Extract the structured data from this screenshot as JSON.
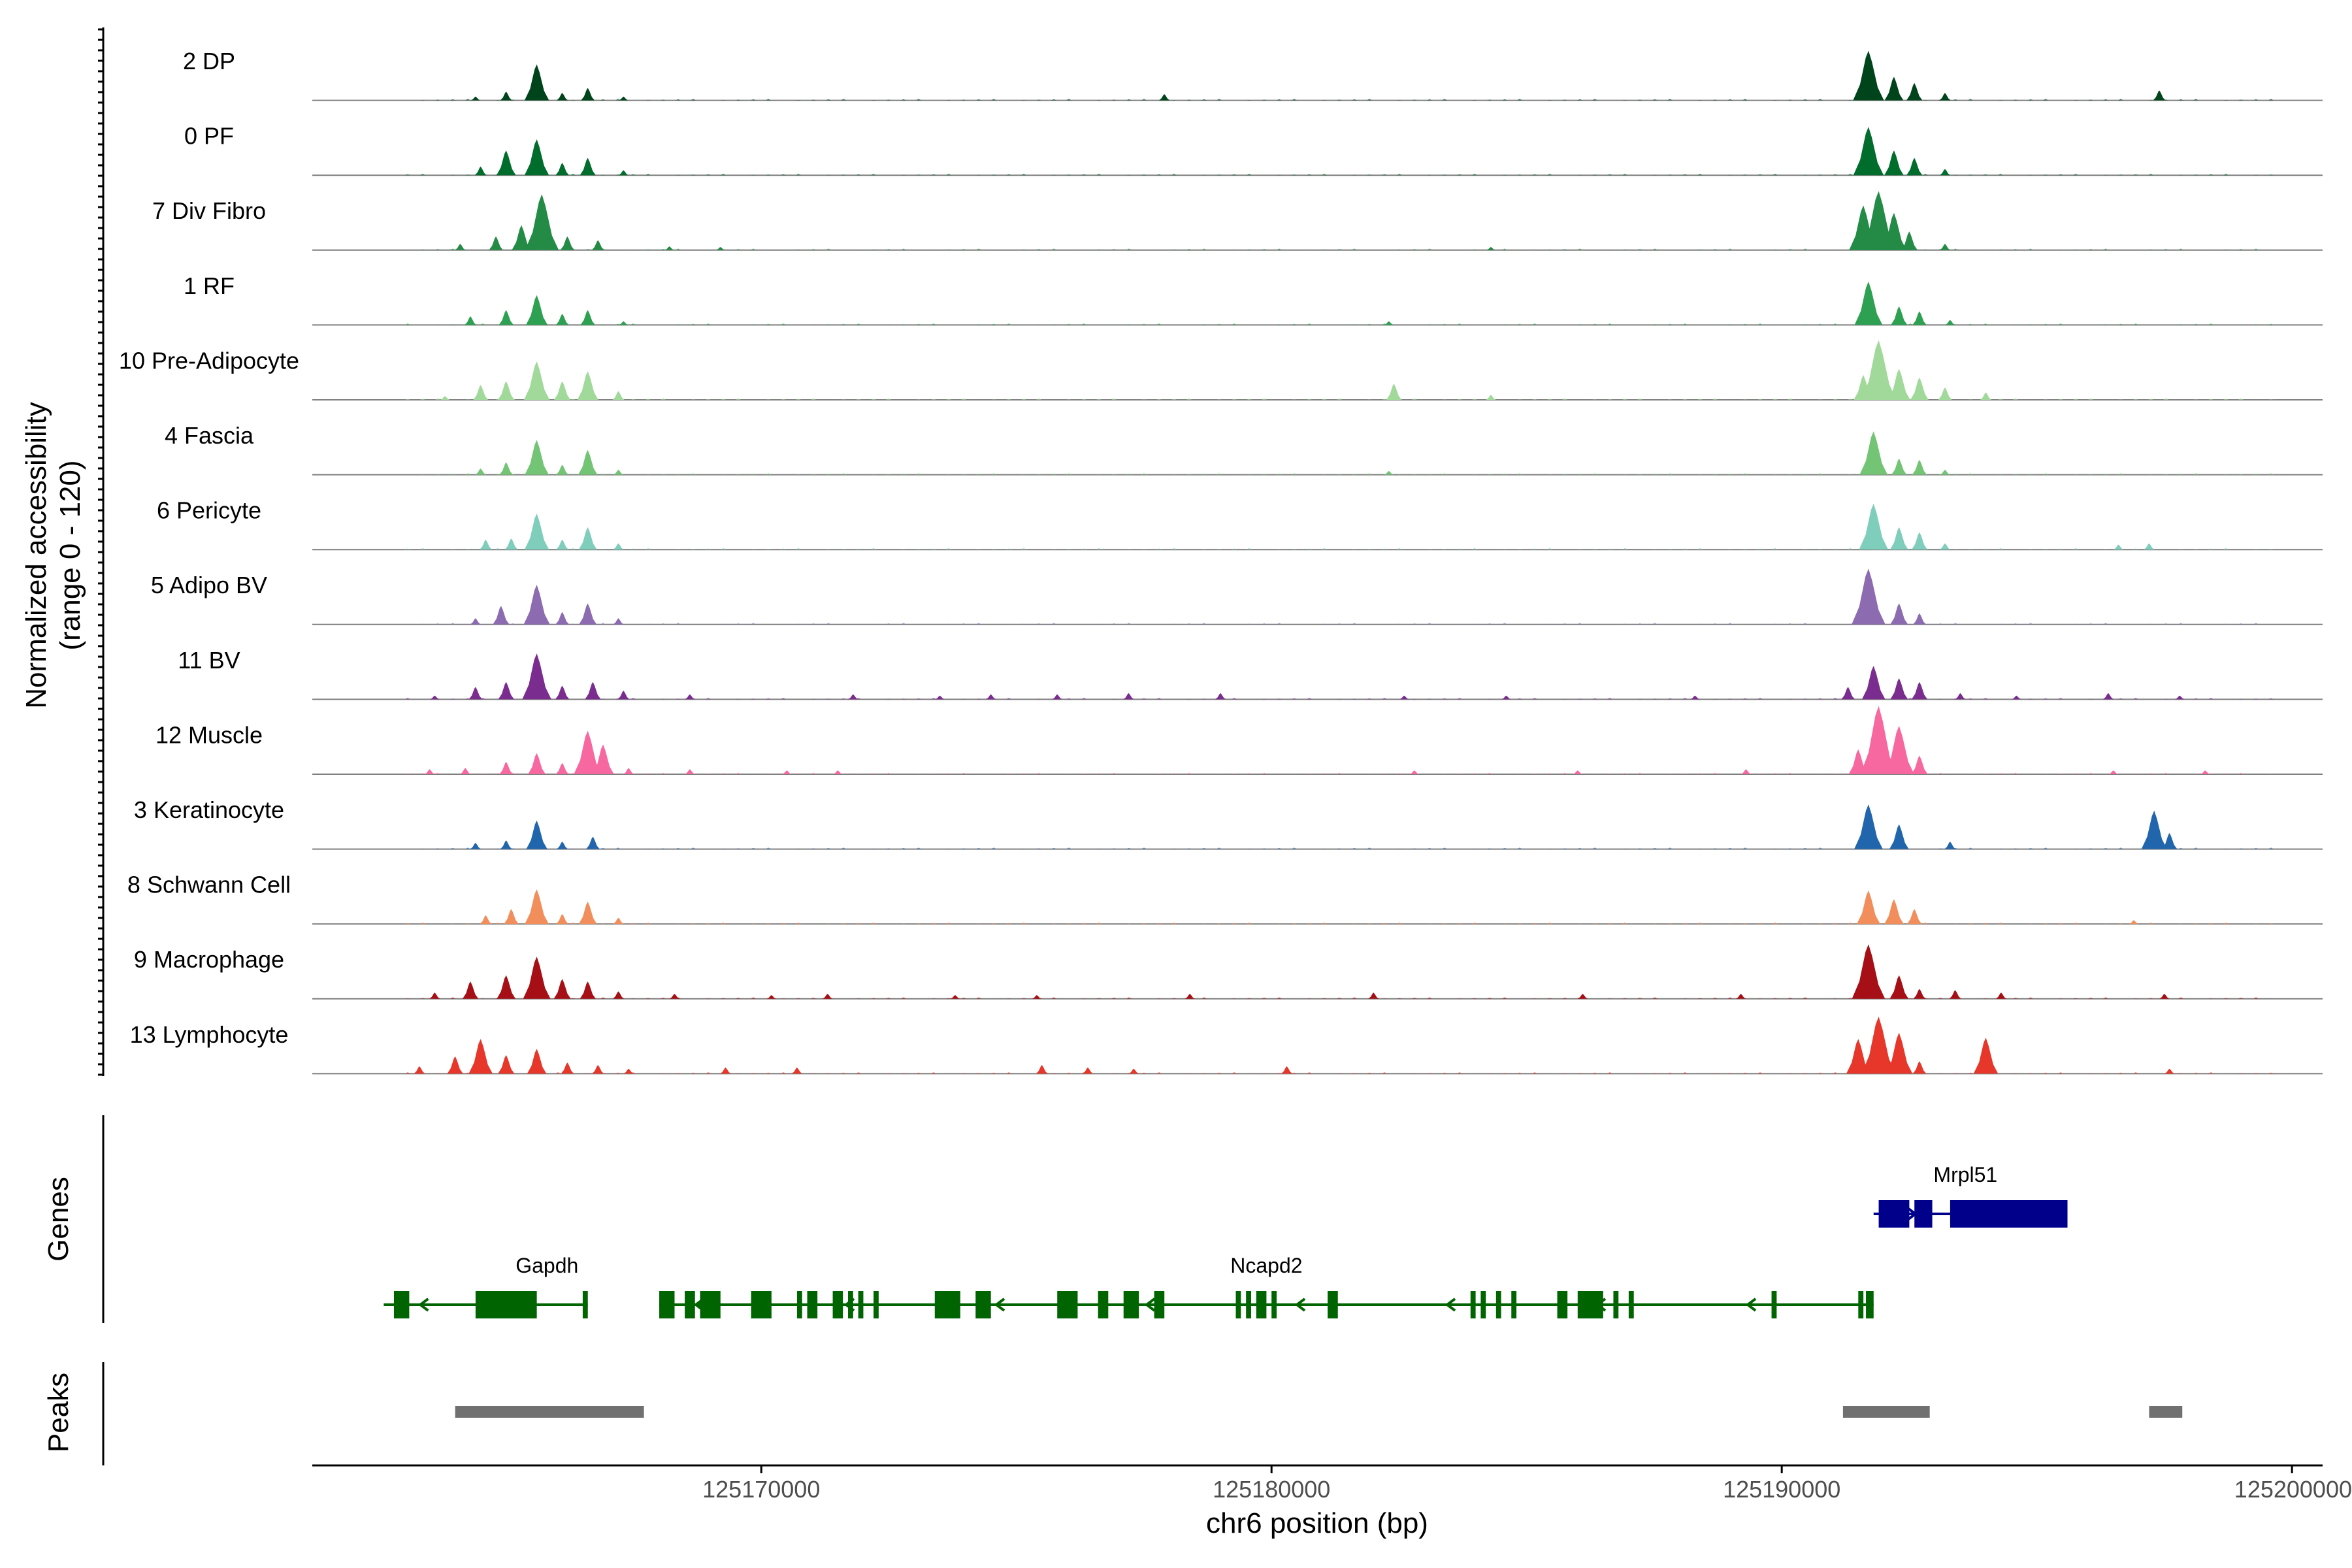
{
  "chart_data": {
    "type": "area",
    "subtype": "genome-coverage-track",
    "chromosome": "chr6",
    "xlabel": "chr6 position (bp)",
    "ylabel": "Normalized accessibility\n(range 0 - 120)",
    "y_range": [
      0,
      120
    ],
    "xlim": [
      125161200,
      125200600
    ],
    "x_ticks": [
      125170000,
      125180000,
      125190000,
      125200000
    ],
    "x_tick_labels": [
      "125170000",
      "125180000",
      "125190000",
      "125200000"
    ],
    "grid": false,
    "legend": "none",
    "tracks": [
      {
        "label": "2 DP",
        "color": "#00441b",
        "peaks": [
          [
            125164400,
            6
          ],
          [
            125165000,
            14
          ],
          [
            125165600,
            58
          ],
          [
            125166100,
            12
          ],
          [
            125166600,
            20
          ],
          [
            125167300,
            6
          ],
          [
            125177900,
            10
          ],
          [
            125191700,
            80
          ],
          [
            125192200,
            38
          ],
          [
            125192600,
            28
          ],
          [
            125193200,
            12
          ],
          [
            125197400,
            16
          ]
        ]
      },
      {
        "label": "0 PF",
        "color": "#006d2c",
        "peaks": [
          [
            125164500,
            14
          ],
          [
            125165000,
            40
          ],
          [
            125165600,
            58
          ],
          [
            125166100,
            20
          ],
          [
            125166600,
            28
          ],
          [
            125167300,
            8
          ],
          [
            125191700,
            78
          ],
          [
            125192200,
            40
          ],
          [
            125192600,
            28
          ],
          [
            125193200,
            10
          ]
        ]
      },
      {
        "label": "7 Div Fibro",
        "color": "#238b45",
        "peaks": [
          [
            125164100,
            10
          ],
          [
            125164800,
            22
          ],
          [
            125165300,
            40
          ],
          [
            125165700,
            90
          ],
          [
            125166200,
            22
          ],
          [
            125166800,
            16
          ],
          [
            125168200,
            6
          ],
          [
            125169200,
            5
          ],
          [
            125184300,
            5
          ],
          [
            125191600,
            72
          ],
          [
            125191900,
            95
          ],
          [
            125192200,
            60
          ],
          [
            125192500,
            30
          ],
          [
            125193200,
            10
          ]
        ]
      },
      {
        "label": "1 RF",
        "color": "#2ea052",
        "peaks": [
          [
            125164300,
            14
          ],
          [
            125165000,
            24
          ],
          [
            125165600,
            48
          ],
          [
            125166100,
            18
          ],
          [
            125166600,
            24
          ],
          [
            125167300,
            6
          ],
          [
            125182300,
            6
          ],
          [
            125191700,
            70
          ],
          [
            125192300,
            30
          ],
          [
            125192700,
            22
          ],
          [
            125193300,
            8
          ]
        ]
      },
      {
        "label": "10 Pre-Adipocyte",
        "color": "#a1d99b",
        "peaks": [
          [
            125163800,
            6
          ],
          [
            125164500,
            24
          ],
          [
            125165000,
            30
          ],
          [
            125165600,
            62
          ],
          [
            125166100,
            30
          ],
          [
            125166600,
            46
          ],
          [
            125167200,
            14
          ],
          [
            125182400,
            26
          ],
          [
            125184300,
            8
          ],
          [
            125191600,
            40
          ],
          [
            125191900,
            96
          ],
          [
            125192300,
            50
          ],
          [
            125192700,
            36
          ],
          [
            125193200,
            20
          ],
          [
            125194000,
            12
          ]
        ]
      },
      {
        "label": "4 Fascia",
        "color": "#74c476",
        "peaks": [
          [
            125164500,
            10
          ],
          [
            125165000,
            20
          ],
          [
            125165600,
            56
          ],
          [
            125166100,
            16
          ],
          [
            125166600,
            40
          ],
          [
            125167200,
            8
          ],
          [
            125182300,
            6
          ],
          [
            125191800,
            70
          ],
          [
            125192300,
            26
          ],
          [
            125192700,
            24
          ],
          [
            125193200,
            8
          ]
        ]
      },
      {
        "label": "6 Pericyte",
        "color": "#7fcdbb",
        "peaks": [
          [
            125164600,
            16
          ],
          [
            125165100,
            18
          ],
          [
            125165600,
            58
          ],
          [
            125166100,
            16
          ],
          [
            125166600,
            36
          ],
          [
            125167200,
            10
          ],
          [
            125191800,
            74
          ],
          [
            125192300,
            36
          ],
          [
            125192700,
            28
          ],
          [
            125193200,
            10
          ],
          [
            125196600,
            8
          ],
          [
            125197200,
            10
          ]
        ]
      },
      {
        "label": "5 Adipo BV",
        "color": "#8c6bb1",
        "peaks": [
          [
            125164400,
            10
          ],
          [
            125164900,
            30
          ],
          [
            125165600,
            64
          ],
          [
            125166100,
            20
          ],
          [
            125166600,
            34
          ],
          [
            125167200,
            10
          ],
          [
            125191700,
            90
          ],
          [
            125192300,
            34
          ],
          [
            125192700,
            18
          ]
        ]
      },
      {
        "label": "11 BV",
        "color": "#7b2d8f",
        "peaks": [
          [
            125163600,
            6
          ],
          [
            125164400,
            20
          ],
          [
            125165000,
            28
          ],
          [
            125165600,
            74
          ],
          [
            125166100,
            22
          ],
          [
            125166700,
            28
          ],
          [
            125167300,
            14
          ],
          [
            125168600,
            8
          ],
          [
            125171800,
            8
          ],
          [
            125173500,
            6
          ],
          [
            125174500,
            8
          ],
          [
            125175800,
            8
          ],
          [
            125177200,
            10
          ],
          [
            125179000,
            10
          ],
          [
            125182600,
            6
          ],
          [
            125184600,
            6
          ],
          [
            125188300,
            6
          ],
          [
            125191300,
            20
          ],
          [
            125191800,
            54
          ],
          [
            125192300,
            34
          ],
          [
            125192700,
            28
          ],
          [
            125193500,
            10
          ],
          [
            125194600,
            6
          ],
          [
            125196400,
            10
          ],
          [
            125197800,
            6
          ]
        ]
      },
      {
        "label": "12 Muscle",
        "color": "#f768a1",
        "peaks": [
          [
            125163500,
            8
          ],
          [
            125164200,
            10
          ],
          [
            125165000,
            20
          ],
          [
            125165600,
            34
          ],
          [
            125166100,
            18
          ],
          [
            125166600,
            70
          ],
          [
            125166900,
            48
          ],
          [
            125167400,
            10
          ],
          [
            125168600,
            8
          ],
          [
            125170500,
            6
          ],
          [
            125171500,
            6
          ],
          [
            125182800,
            6
          ],
          [
            125186000,
            6
          ],
          [
            125189300,
            8
          ],
          [
            125191500,
            40
          ],
          [
            125191900,
            110
          ],
          [
            125192300,
            78
          ],
          [
            125192700,
            30
          ],
          [
            125196500,
            6
          ],
          [
            125198300,
            6
          ]
        ]
      },
      {
        "label": "3 Keratinocyte",
        "color": "#2166ac",
        "peaks": [
          [
            125164400,
            10
          ],
          [
            125165000,
            14
          ],
          [
            125165600,
            46
          ],
          [
            125166100,
            12
          ],
          [
            125166700,
            20
          ],
          [
            125191700,
            72
          ],
          [
            125192300,
            40
          ],
          [
            125193300,
            12
          ],
          [
            125197300,
            62
          ],
          [
            125197600,
            26
          ]
        ]
      },
      {
        "label": "8 Schwann Cell",
        "color": "#f28e5b",
        "peaks": [
          [
            125164600,
            14
          ],
          [
            125165100,
            24
          ],
          [
            125165600,
            56
          ],
          [
            125166100,
            16
          ],
          [
            125166600,
            36
          ],
          [
            125167200,
            10
          ],
          [
            125191700,
            54
          ],
          [
            125192200,
            40
          ],
          [
            125192600,
            24
          ],
          [
            125196900,
            6
          ]
        ]
      },
      {
        "label": "9 Macrophage",
        "color": "#a50f15",
        "peaks": [
          [
            125163600,
            10
          ],
          [
            125164300,
            28
          ],
          [
            125165000,
            38
          ],
          [
            125165600,
            68
          ],
          [
            125166100,
            32
          ],
          [
            125166600,
            28
          ],
          [
            125167200,
            12
          ],
          [
            125168300,
            8
          ],
          [
            125170200,
            6
          ],
          [
            125171300,
            8
          ],
          [
            125173800,
            6
          ],
          [
            125175400,
            6
          ],
          [
            125178400,
            8
          ],
          [
            125182000,
            10
          ],
          [
            125186100,
            8
          ],
          [
            125189200,
            8
          ],
          [
            125191700,
            88
          ],
          [
            125192300,
            38
          ],
          [
            125192700,
            16
          ],
          [
            125193400,
            14
          ],
          [
            125194300,
            10
          ],
          [
            125197500,
            8
          ]
        ]
      },
      {
        "label": "13 Lymphocyte",
        "color": "#e7362a",
        "peaks": [
          [
            125163300,
            12
          ],
          [
            125164000,
            28
          ],
          [
            125164500,
            56
          ],
          [
            125165000,
            30
          ],
          [
            125165600,
            40
          ],
          [
            125166200,
            18
          ],
          [
            125166800,
            14
          ],
          [
            125167400,
            8
          ],
          [
            125169300,
            10
          ],
          [
            125170700,
            10
          ],
          [
            125175500,
            14
          ],
          [
            125176400,
            10
          ],
          [
            125177300,
            8
          ],
          [
            125180300,
            12
          ],
          [
            125191500,
            56
          ],
          [
            125191900,
            92
          ],
          [
            125192300,
            66
          ],
          [
            125192700,
            20
          ],
          [
            125194000,
            58
          ],
          [
            125197600,
            8
          ]
        ]
      }
    ],
    "genes": [
      {
        "name": "Gapdh",
        "strand": "-",
        "color": "#006400",
        "row": 2,
        "start": 125162600,
        "end": 125166600,
        "name_pos": 125165800,
        "exons": [
          [
            125162800,
            125163100
          ],
          [
            125164400,
            125165600
          ],
          [
            125166500,
            125166600
          ]
        ]
      },
      {
        "name": "Ncapd2",
        "strand": "-",
        "color": "#006400",
        "row": 2,
        "start": 125168000,
        "end": 125191800,
        "name_pos": 125179900,
        "exons": [
          [
            125168000,
            125168300
          ],
          [
            125168500,
            125168700
          ],
          [
            125168800,
            125169200
          ],
          [
            125169800,
            125170200
          ],
          [
            125170700,
            125170800
          ],
          [
            125170900,
            125171100
          ],
          [
            125171400,
            125171600
          ],
          [
            125171700,
            125171800
          ],
          [
            125171900,
            125172000
          ],
          [
            125172200,
            125172300
          ],
          [
            125173400,
            125173900
          ],
          [
            125174200,
            125174500
          ],
          [
            125175800,
            125176200
          ],
          [
            125176600,
            125176800
          ],
          [
            125177100,
            125177400
          ],
          [
            125177700,
            125177900
          ],
          [
            125179300,
            125179400
          ],
          [
            125179500,
            125179600
          ],
          [
            125179700,
            125179900
          ],
          [
            125180000,
            125180100
          ],
          [
            125181100,
            125181300
          ],
          [
            125183900,
            125184000
          ],
          [
            125184100,
            125184200
          ],
          [
            125184400,
            125184500
          ],
          [
            125184700,
            125184800
          ],
          [
            125185600,
            125185800
          ],
          [
            125186000,
            125186500
          ],
          [
            125186700,
            125186800
          ],
          [
            125187000,
            125187100
          ],
          [
            125189800,
            125189900
          ],
          [
            125191500,
            125191600
          ],
          [
            125191650,
            125191800
          ]
        ]
      },
      {
        "name": "Mrpl51",
        "strand": "+",
        "color": "#00008b",
        "row": 1,
        "start": 125191800,
        "end": 125195600,
        "name_pos": 125193600,
        "exons": [
          [
            125191900,
            125192500
          ],
          [
            125192600,
            125192950
          ],
          [
            125193300,
            125195600
          ]
        ]
      }
    ],
    "genes_label": "Genes",
    "peaks_label": "Peaks",
    "peak_regions": {
      "color": "#707070",
      "intervals": [
        [
          125164000,
          125167700
        ],
        [
          125191200,
          125192900
        ],
        [
          125197200,
          125197850
        ]
      ]
    }
  }
}
